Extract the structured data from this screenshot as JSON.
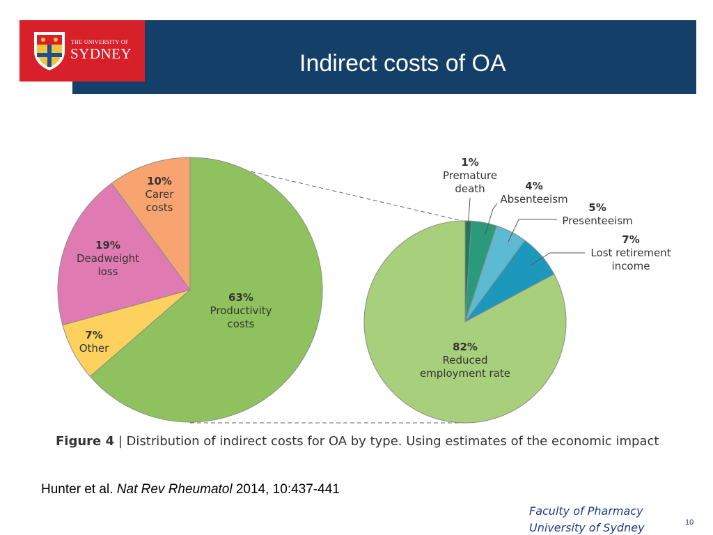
{
  "header": {
    "title": "Indirect costs of OA",
    "logo_small": "THE UNIVERSITY OF",
    "logo_big": "SYDNEY"
  },
  "chart_data": [
    {
      "type": "pie",
      "slices": [
        {
          "label": "Productivity costs",
          "line1": "Productivity",
          "line2": "costs",
          "value": 63,
          "value_label": "63%",
          "color": "#8fc25e"
        },
        {
          "label": "Other",
          "line1": "Other",
          "value": 7,
          "value_label": "7%",
          "color": "#fdd15e"
        },
        {
          "label": "Deadweight loss",
          "line1": "Deadweight",
          "line2": "loss",
          "value": 19,
          "value_label": "19%",
          "color": "#e07ab3"
        },
        {
          "label": "Carer costs",
          "line1": "Carer",
          "line2": "costs",
          "value": 10,
          "value_label": "10%",
          "color": "#f8a470"
        }
      ]
    },
    {
      "type": "pie",
      "breakdown_of": "Productivity costs",
      "slices": [
        {
          "label": "Premature death",
          "line1": "Premature",
          "line2": "death",
          "value": 1,
          "value_label": "1%",
          "color": "#1f7a5c"
        },
        {
          "label": "Absenteeism",
          "line1": "Absenteeism",
          "value": 4,
          "value_label": "4%",
          "color": "#2a9a7a"
        },
        {
          "label": "Presenteeism",
          "line1": "Presenteeism",
          "value": 5,
          "value_label": "5%",
          "color": "#5cbad2"
        },
        {
          "label": "Lost retirement income",
          "line1": "Lost retirement",
          "line2": "income",
          "value": 7,
          "value_label": "7%",
          "color": "#1b98bb"
        },
        {
          "label": "Reduced employment rate",
          "line1": "Reduced",
          "line2": "employment rate",
          "value": 82,
          "value_label": "82%",
          "color": "#a8d07c"
        }
      ]
    }
  ],
  "caption": {
    "figure": "Figure 4",
    "text": " | Distribution of indirect costs for OA by type. Using estimates of the economic impact"
  },
  "citation": {
    "authors": "Hunter et al. ",
    "journal": "Nat Rev Rheumatol",
    "rest": " 2014, 10:437-441"
  },
  "footer": {
    "line1": "Faculty of Pharmacy",
    "line2": "University of Sydney",
    "page": "10"
  }
}
